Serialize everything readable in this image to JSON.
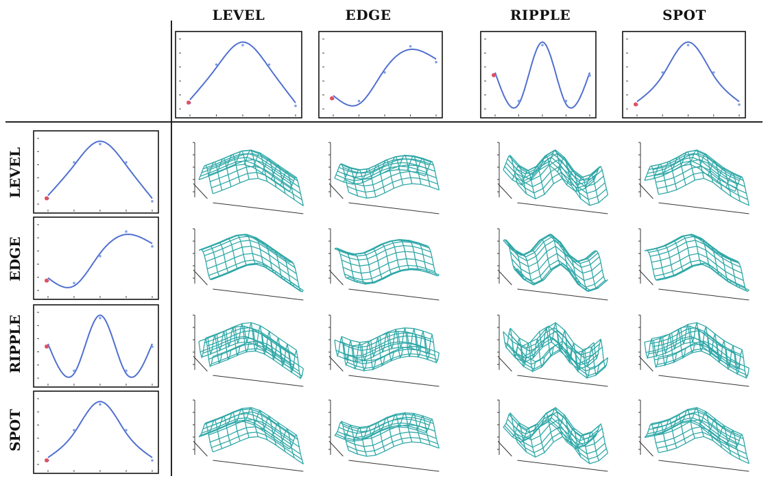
{
  "columns": [
    "LEVEL",
    "EDGE",
    "RIPPLE",
    "SPOT"
  ],
  "rows": [
    "LEVEL",
    "EDGE",
    "RIPPLE",
    "SPOT"
  ],
  "colors": {
    "curve": "#4f6fd0",
    "point": "#7fa0e8",
    "start": "#e05060",
    "mesh": "#2fa7a7",
    "frame": "#111111"
  },
  "chart_data": [
    {
      "type": "line",
      "name": "LEVEL",
      "x": [
        1,
        2,
        3,
        4,
        5
      ],
      "y": [
        0.05,
        0.58,
        1.0,
        0.58,
        0.0
      ]
    },
    {
      "type": "line",
      "name": "EDGE",
      "x": [
        1,
        2,
        3,
        4,
        5
      ],
      "y": [
        0.12,
        -0.02,
        0.55,
        0.88,
        0.72
      ]
    },
    {
      "type": "line",
      "name": "RIPPLE",
      "x": [
        1,
        2,
        3,
        4,
        5
      ],
      "y": [
        0.5,
        -0.02,
        1.0,
        -0.02,
        0.5
      ]
    },
    {
      "type": "line",
      "name": "SPOT",
      "x": [
        1,
        2,
        3,
        4,
        5
      ],
      "y": [
        0.02,
        0.45,
        1.0,
        0.45,
        0.02
      ]
    }
  ]
}
